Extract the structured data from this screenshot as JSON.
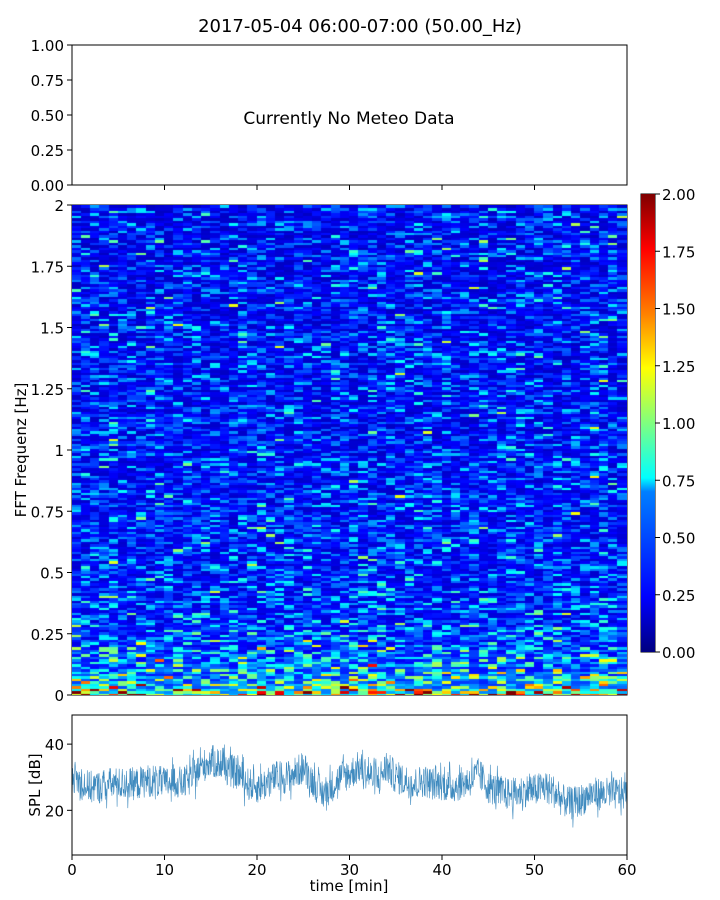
{
  "chart_data": [
    {
      "type": "text",
      "title": "2017-05-04 06:00-07:00 (50.00_Hz)",
      "message": "Currently No Meteo Data",
      "ylim": [
        0,
        1
      ],
      "yticks": [
        "0.00",
        "0.25",
        "0.50",
        "0.75",
        "1.00"
      ],
      "xlim": [
        0,
        60
      ]
    },
    {
      "type": "heatmap",
      "ylabel": "FFT Frequenz [Hz]",
      "ylim": [
        0,
        2
      ],
      "xlim": [
        0,
        60
      ],
      "yticks": [
        "0",
        "0.25",
        "0.5",
        "0.75",
        "1",
        "1.25",
        "1.5",
        "1.75",
        "2"
      ],
      "yticks_values": [
        0,
        0.25,
        0.5,
        0.75,
        1,
        1.25,
        1.5,
        1.75,
        2
      ],
      "colormap": "jet",
      "clim": [
        0,
        2
      ],
      "colorbar_ticks": [
        "0.00",
        "0.25",
        "0.50",
        "0.75",
        "1.00",
        "1.25",
        "1.50",
        "1.75",
        "2.00"
      ],
      "colorbar_values": [
        0,
        0.25,
        0.5,
        0.75,
        1,
        1.25,
        1.5,
        1.75,
        2
      ],
      "time_bins": 60,
      "freq_bins": 200,
      "mean_intensity_by_freq": {
        "freq": [
          0,
          0.02,
          0.05,
          0.1,
          0.2,
          0.3,
          0.5,
          1,
          2
        ],
        "value": [
          1.6,
          1.1,
          0.8,
          0.65,
          0.5,
          0.42,
          0.38,
          0.35,
          0.32
        ]
      }
    },
    {
      "type": "line",
      "ylabel": "SPL [dB]",
      "xlabel": "time [min]",
      "xlim": [
        0,
        60
      ],
      "ylim": [
        6.5,
        48.8
      ],
      "xticks": [
        "0",
        "10",
        "20",
        "30",
        "40",
        "50",
        "60"
      ],
      "xticks_values": [
        0,
        10,
        20,
        30,
        40,
        50,
        60
      ],
      "yticks": [
        "20",
        "40"
      ],
      "yticks_values": [
        20,
        40
      ],
      "color": "#1f77b4",
      "x": [
        0,
        1,
        2,
        3,
        4,
        5,
        6,
        7,
        8,
        9,
        10,
        11,
        12,
        13,
        14,
        15,
        16,
        17,
        18,
        19,
        20,
        21,
        22,
        23,
        24,
        25,
        26,
        27,
        28,
        29,
        30,
        31,
        32,
        33,
        34,
        35,
        36,
        37,
        38,
        39,
        40,
        41,
        42,
        43,
        44,
        45,
        46,
        47,
        48,
        49,
        50,
        51,
        52,
        53,
        54,
        55,
        56,
        57,
        58,
        59,
        60
      ],
      "mean": [
        31,
        28,
        27,
        27,
        28,
        28,
        28,
        28,
        29,
        29,
        28,
        29,
        28,
        30,
        33,
        35,
        34,
        32,
        31,
        28,
        27,
        28,
        30,
        30,
        31,
        33,
        29,
        25,
        27,
        30,
        31,
        33,
        31,
        29,
        33,
        30,
        29,
        28,
        29,
        28,
        28,
        27,
        28,
        29,
        31,
        27,
        26,
        25,
        25,
        26,
        26,
        27,
        26,
        23,
        22,
        23,
        25,
        25,
        25,
        25,
        25
      ],
      "spread_db": 5
    }
  ]
}
